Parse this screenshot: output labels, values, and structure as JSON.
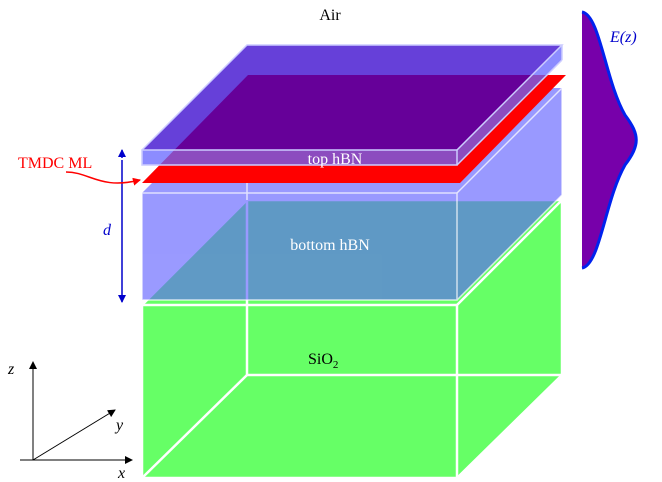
{
  "labels": {
    "air": "Air",
    "tmdc": "TMDC ML",
    "top_hbn": "top hBN",
    "bottom_hbn": "bottom hBN",
    "substrate": {
      "base": "SiO",
      "subscript": "2"
    },
    "thickness": "d",
    "field": "E(z)",
    "axes": {
      "z": "z",
      "y": "y",
      "x": "x"
    }
  }
}
